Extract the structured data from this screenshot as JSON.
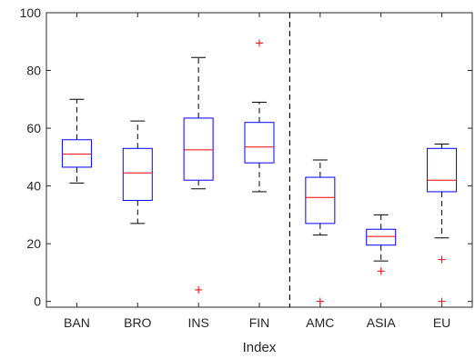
{
  "chart_data": {
    "type": "box",
    "title": "",
    "xlabel": "Index",
    "ylabel": "",
    "ylim": [
      -2,
      100
    ],
    "yticks": [
      0,
      20,
      40,
      60,
      80,
      100
    ],
    "grid": false,
    "categories": [
      "BAN",
      "BRO",
      "INS",
      "FIN",
      "AMC",
      "ASIA",
      "EU"
    ],
    "boxes": [
      {
        "category": "BAN",
        "whisker_low": 41,
        "q1": 46.5,
        "median": 51,
        "q3": 56,
        "whisker_high": 70,
        "outliers": []
      },
      {
        "category": "BRO",
        "whisker_low": 27,
        "q1": 35,
        "median": 44.5,
        "q3": 53,
        "whisker_high": 62.5,
        "outliers": []
      },
      {
        "category": "INS",
        "whisker_low": 39,
        "q1": 42,
        "median": 52.5,
        "q3": 63.5,
        "whisker_high": 84.5,
        "outliers": [
          4
        ]
      },
      {
        "category": "FIN",
        "whisker_low": 38,
        "q1": 48,
        "median": 53.5,
        "q3": 62,
        "whisker_high": 69,
        "outliers": [
          89.5
        ]
      },
      {
        "category": "AMC",
        "whisker_low": 23,
        "q1": 27,
        "median": 36,
        "q3": 43,
        "whisker_high": 49,
        "outliers": [
          0
        ]
      },
      {
        "category": "ASIA",
        "whisker_low": 14,
        "q1": 19.5,
        "median": 22.5,
        "q3": 25,
        "whisker_high": 30,
        "outliers": [
          10.5
        ]
      },
      {
        "category": "EU",
        "whisker_low": 22,
        "q1": 38,
        "median": 42,
        "q3": 53,
        "whisker_high": 54.5,
        "outliers": [
          14.5,
          0
        ]
      }
    ],
    "divider_after_category": "FIN",
    "colors": {
      "box": "#0000ff",
      "median": "#ff0000",
      "whisker": "#000000",
      "outlier": "#ff0000",
      "divider": "#000000",
      "axis": "#262626"
    }
  }
}
